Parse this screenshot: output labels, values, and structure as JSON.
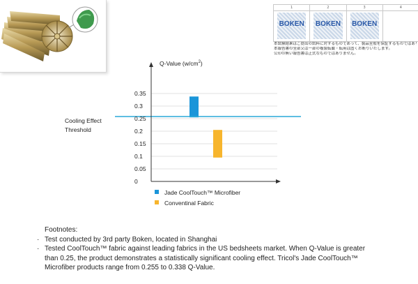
{
  "report": {
    "headers": [
      "1",
      "2",
      "3",
      "4"
    ],
    "logos": [
      "BOKEN",
      "BOKEN",
      "BOKEN"
    ],
    "notes": [
      "本試験結果はご提出の試料に対するものであって、製品全般を保証するものではありません。",
      "本報告書の全部又は一部の複製転載・転用は固くお断りいたします。",
      "公印の無い報告書は正式なものではありません。"
    ]
  },
  "colors": {
    "threshold": "#29a9d8",
    "jade": "#1a95d9",
    "conventional": "#f7b52d",
    "axis": "#333333"
  },
  "chart_data": {
    "type": "bar",
    "ylabel": "Q-Value (w/cm",
    "ylabel_sup": "2",
    "ylabel_suffix": ")",
    "ylim": [
      0,
      0.38
    ],
    "yticks": [
      0,
      0.05,
      0.1,
      0.15,
      0.2,
      0.25,
      0.3,
      0.35
    ],
    "ytick_labels": [
      "0",
      "0.05",
      "0.1",
      "0.15",
      "0.2",
      "0.25",
      "0.3",
      "0.35"
    ],
    "grid": true,
    "series": [
      {
        "name": "Jade CoolTouch™ Microfiber",
        "range": [
          0.255,
          0.338
        ]
      },
      {
        "name": "Conventinal Fabric",
        "range": [
          0.095,
          0.205
        ]
      }
    ],
    "threshold": {
      "value": 0.25,
      "label_lines": [
        "Cooling Effect",
        "Threshold"
      ]
    },
    "legend_position": "bottom"
  },
  "footnotes": {
    "title": "Footnotes:",
    "items": [
      "Test conducted by 3rd party Boken, located in Shanghai",
      "Tested CoolTouch™ fabric against leading fabrics in the US bedsheets market. When Q-Value is greater\nthan 0.25, the product demonstrates a statistically significant cooling effect. Tricol's Jade CoolTouch™\nMicrofiber products range from 0.255 to 0.338 Q-Value."
    ]
  }
}
